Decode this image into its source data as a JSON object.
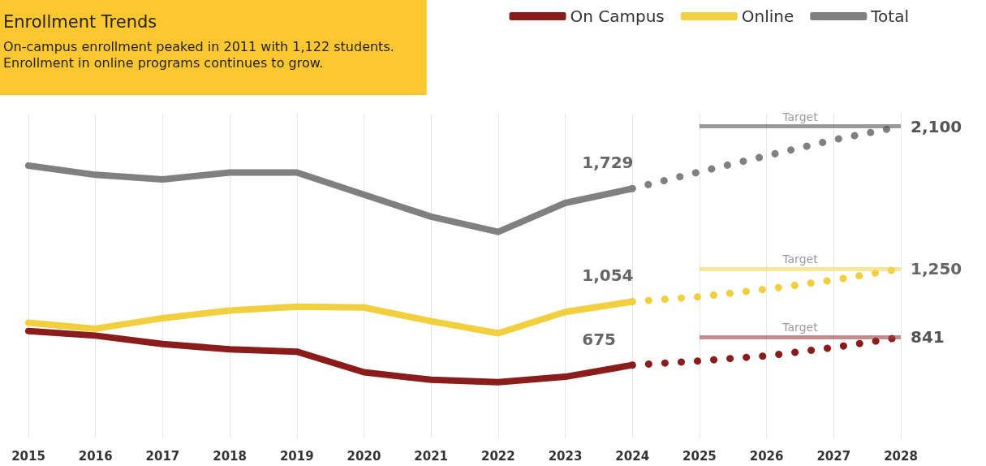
{
  "chart_data": {
    "type": "line",
    "title": "Enrollment Trends",
    "subtitle": "On-campus enrollment peaked in 2011 with 1,122 students.\nEnrollment in online programs continues to grow.",
    "categories": [
      "2015",
      "2016",
      "2017",
      "2018",
      "2019",
      "2020",
      "2021",
      "2022",
      "2023",
      "2024",
      "2025",
      "2026",
      "2027",
      "2028"
    ],
    "grid": "x",
    "legend": "top right",
    "marker": "none",
    "line_style": "solid",
    "series": [
      {
        "name": "On Campus",
        "color": "#8b1c1c",
        "values": [
          878,
          851,
          801,
          769,
          755,
          632,
          587,
          573,
          605,
          675,
          null,
          null,
          null,
          null
        ],
        "value_labels": [
          null,
          null,
          null,
          null,
          null,
          null,
          null,
          null,
          null,
          "675",
          null,
          null,
          null,
          null
        ]
      },
      {
        "name": "Online",
        "color": "#f2cf3e",
        "values": [
          928,
          892,
          955,
          1001,
          1024,
          1019,
          937,
          865,
          992,
          1054,
          null,
          null,
          null,
          null
        ],
        "value_labels": [
          null,
          null,
          null,
          null,
          null,
          null,
          null,
          null,
          null,
          "1,054",
          null,
          null,
          null,
          null
        ]
      },
      {
        "name": "Total",
        "color": "#808080",
        "values": [
          1866,
          1811,
          1784,
          1825,
          1825,
          1693,
          1561,
          1470,
          1643,
          1729,
          null,
          null,
          null,
          null
        ],
        "value_labels": [
          null,
          null,
          null,
          null,
          null,
          null,
          null,
          null,
          null,
          "1,729",
          null,
          null,
          null,
          null
        ]
      },
      {
        "color": "#8b1c1c",
        "line_style": "dotted",
        "values": [
          null,
          null,
          null,
          null,
          null,
          null,
          null,
          null,
          null,
          675,
          700,
          730,
          780,
          841
        ],
        "value_labels": [
          null,
          null,
          null,
          null,
          null,
          null,
          null,
          null,
          null,
          null,
          null,
          null,
          null,
          "841"
        ]
      },
      {
        "color": "#f2cf3e",
        "line_style": "dotted",
        "values": [
          null,
          null,
          null,
          null,
          null,
          null,
          null,
          null,
          null,
          1054,
          1083,
          1128,
          1183,
          1250
        ],
        "value_labels": [
          null,
          null,
          null,
          null,
          null,
          null,
          null,
          null,
          null,
          null,
          null,
          null,
          null,
          "1,250"
        ]
      },
      {
        "color": "#808080",
        "line_style": "dotted",
        "values": [
          null,
          null,
          null,
          null,
          null,
          null,
          null,
          null,
          null,
          1729,
          1829,
          1925,
          2020,
          2100
        ],
        "value_labels": [
          null,
          null,
          null,
          null,
          null,
          null,
          null,
          null,
          null,
          null,
          null,
          null,
          null,
          "2,100"
        ]
      }
    ],
    "ref_lines": [
      {
        "axis": "y",
        "value": 2100,
        "label": "Target",
        "color": "#555555"
      },
      {
        "axis": "y",
        "value": 1250,
        "label": "Target",
        "color": "#f2d75a"
      },
      {
        "axis": "y",
        "value": 841,
        "label": "Target",
        "color": "#a04040"
      }
    ]
  }
}
